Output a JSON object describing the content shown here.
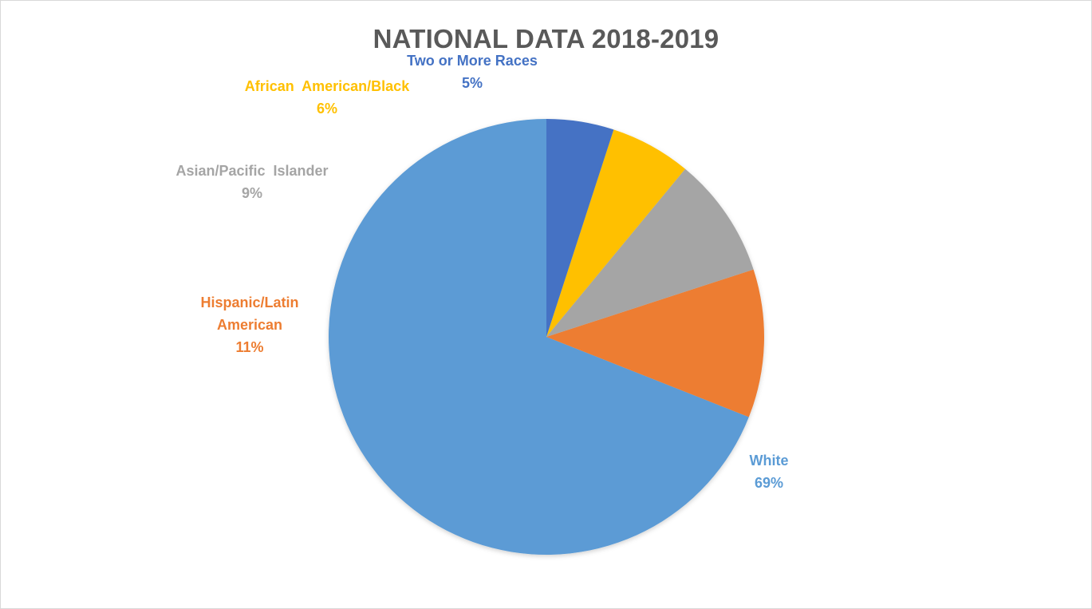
{
  "chart_data": {
    "type": "pie",
    "title": "NATIONAL DATA 2018-2019",
    "categories": [
      "White",
      "Hispanic/Latin American",
      "Asian/Pacific Islander",
      "African American/Black",
      "Two or More Races"
    ],
    "values": [
      69,
      11,
      9,
      6,
      5
    ],
    "value_labels": [
      "69%",
      "11%",
      "9%",
      "6%",
      "5%"
    ],
    "label_lines": [
      [
        "White"
      ],
      [
        "Hispanic/Latin",
        "American"
      ],
      [
        "Asian/Pacific  Islander"
      ],
      [
        "African  American/Black"
      ],
      [
        "Two or More Races"
      ]
    ],
    "colors": [
      "#5b9bd5",
      "#ed7d31",
      "#a5a5a5",
      "#ffc000",
      "#4472c4"
    ],
    "start_angle_deg": 0,
    "direction": "clockwise",
    "legend": "none",
    "data_labels": "outside"
  }
}
